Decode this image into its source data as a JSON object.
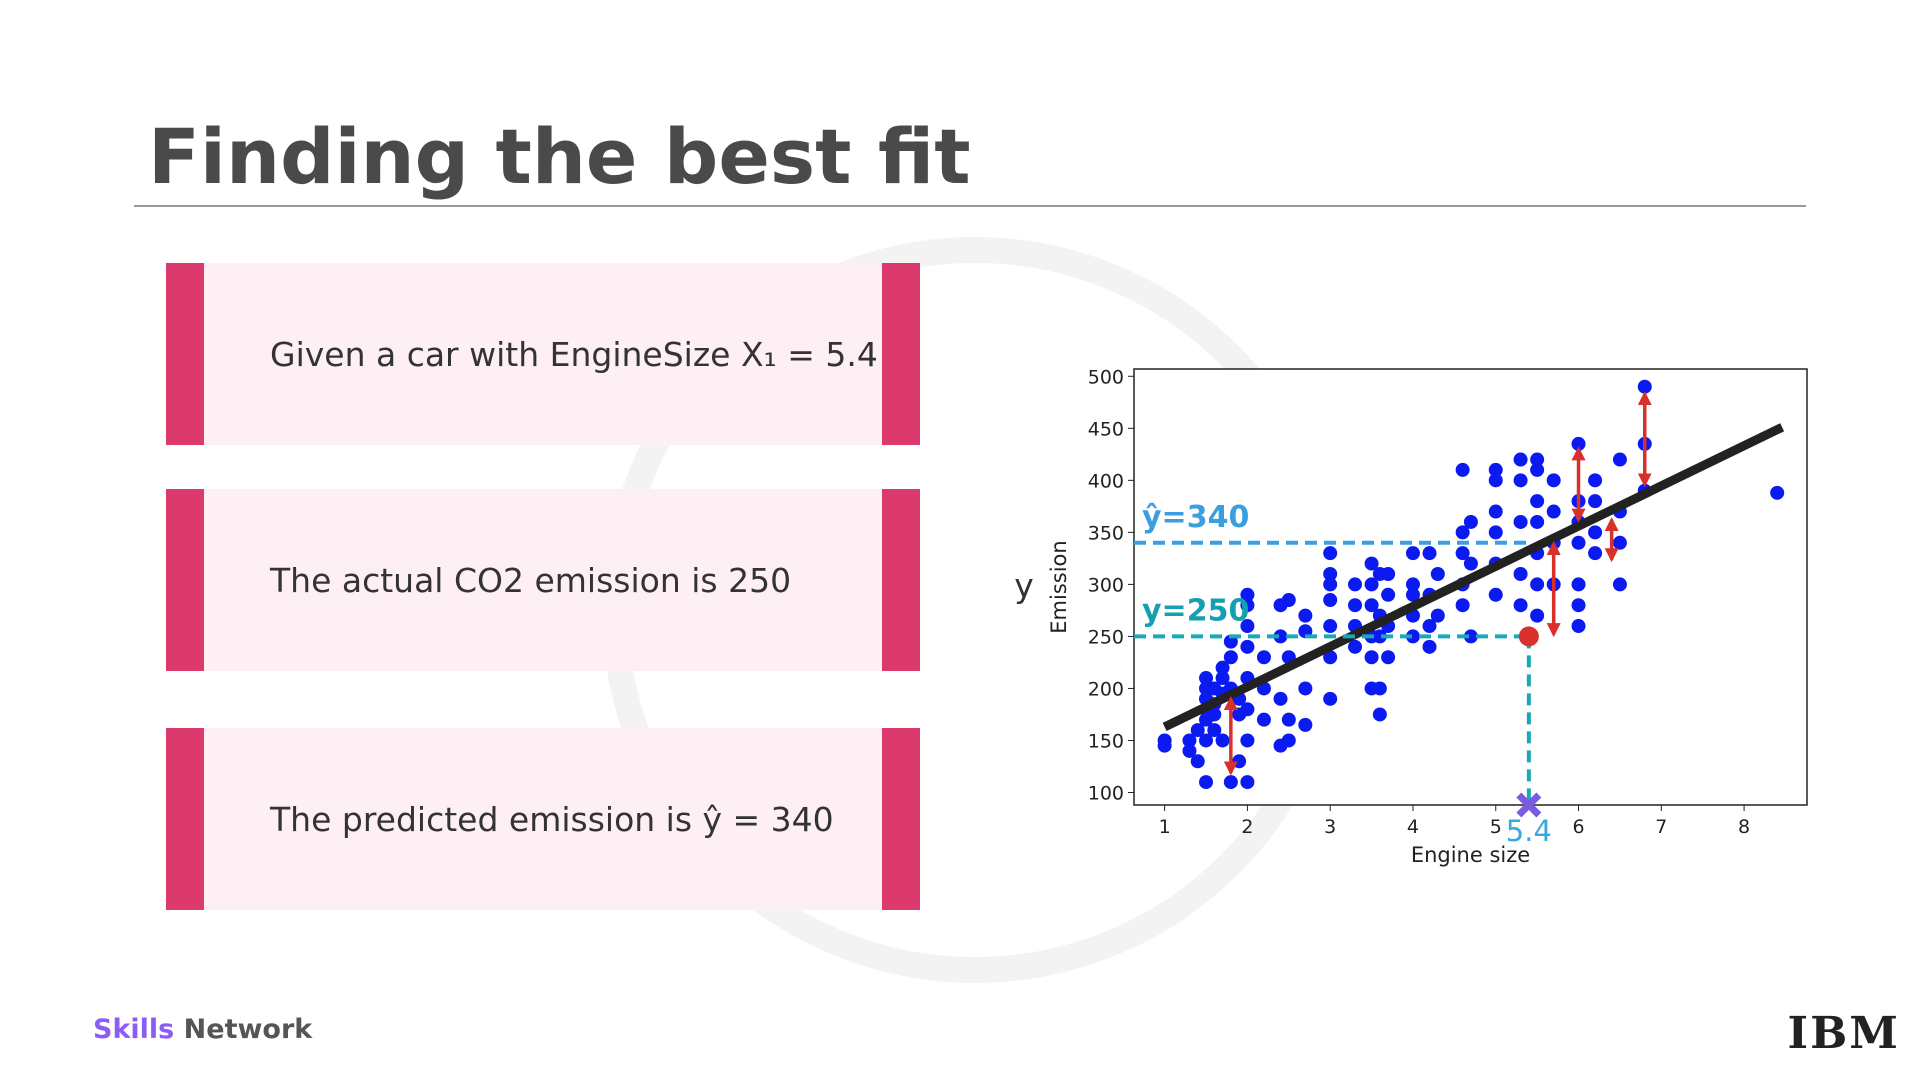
{
  "header": {
    "title": "Finding the best fit"
  },
  "boxes": [
    "Given a car with EngineSize X₁ = 5.4",
    "The actual CO2 emission is 250",
    "The predicted emission is ŷ = 340"
  ],
  "footer": {
    "brand": "Skills",
    "network": "Network",
    "company": "IBM"
  },
  "chart_data": {
    "type": "scatter",
    "x_label": "Engine size",
    "y_label": "Emission",
    "outer_label": "y",
    "xlim": [
      0.63,
      8.76
    ],
    "ylim": [
      88,
      507
    ],
    "xticks": [
      1,
      2,
      3,
      4,
      5,
      6,
      7,
      8
    ],
    "yticks": [
      100,
      150,
      200,
      250,
      300,
      350,
      400,
      450,
      500
    ],
    "series": [
      {
        "color": "#0a1af0",
        "x": [
          1,
          1,
          1.3,
          1.3,
          1.4,
          1.4,
          1.5,
          1.5,
          1.5,
          1.5,
          1.5,
          1.5,
          1.5,
          1.6,
          1.6,
          1.6,
          1.6,
          1.7,
          1.7,
          1.7,
          1.7,
          1.8,
          1.8,
          1.8,
          1.8,
          1.9,
          1.9,
          1.9,
          2,
          2,
          2,
          2,
          2,
          2,
          2,
          2,
          2.2,
          2.2,
          2.2,
          2.4,
          2.4,
          2.4,
          2.4,
          2.5,
          2.5,
          2.5,
          2.5,
          2.7,
          2.7,
          2.7,
          2.7,
          3,
          3,
          3,
          3,
          3,
          3,
          3,
          3.3,
          3.3,
          3.3,
          3.3,
          3.5,
          3.5,
          3.5,
          3.5,
          3.5,
          3.5,
          3.6,
          3.6,
          3.6,
          3.6,
          3.6,
          3.7,
          3.7,
          3.7,
          3.7,
          4,
          4,
          4,
          4,
          4,
          4.2,
          4.2,
          4.2,
          4.2,
          4.3,
          4.3,
          4.6,
          4.6,
          4.6,
          4.6,
          4.6,
          4.7,
          4.7,
          4.7,
          5,
          5,
          5,
          5,
          5,
          5,
          5.3,
          5.3,
          5.3,
          5.3,
          5.3,
          5.5,
          5.5,
          5.5,
          5.5,
          5.5,
          5.5,
          5.5,
          5.7,
          5.7,
          5.7,
          5.7,
          6,
          6,
          6,
          6,
          6,
          6,
          6,
          6.2,
          6.2,
          6.2,
          6.2,
          6.5,
          6.5,
          6.5,
          6.5,
          6.8,
          6.8,
          6.8,
          8.4
        ],
        "values": [
          150,
          145,
          150,
          140,
          130,
          160,
          110,
          180,
          200,
          170,
          150,
          190,
          210,
          185,
          200,
          175,
          160,
          195,
          210,
          220,
          150,
          110,
          200,
          230,
          245,
          130,
          175,
          190,
          110,
          150,
          180,
          210,
          240,
          260,
          280,
          290,
          170,
          200,
          230,
          145,
          190,
          250,
          280,
          170,
          150,
          230,
          285,
          200,
          165,
          255,
          270,
          190,
          230,
          260,
          300,
          330,
          285,
          310,
          240,
          260,
          300,
          280,
          200,
          230,
          250,
          280,
          300,
          320,
          175,
          200,
          250,
          270,
          310,
          230,
          260,
          290,
          310,
          250,
          270,
          290,
          300,
          330,
          240,
          260,
          290,
          330,
          310,
          270,
          280,
          300,
          350,
          330,
          410,
          250,
          320,
          360,
          290,
          320,
          350,
          370,
          400,
          410,
          280,
          310,
          360,
          400,
          420,
          270,
          300,
          330,
          360,
          380,
          410,
          420,
          300,
          340,
          370,
          400,
          260,
          280,
          300,
          340,
          360,
          380,
          435,
          330,
          350,
          380,
          400,
          300,
          340,
          370,
          420,
          390,
          435,
          490,
          388
        ]
      }
    ],
    "fit": {
      "color": "#222222",
      "x": [
        1,
        8.46
      ],
      "values": [
        163,
        451
      ]
    },
    "residuals": [
      {
        "x": 1.8,
        "y": [
          190,
          119
        ]
      },
      {
        "x": 6.0,
        "y": [
          430,
          362
        ]
      },
      {
        "x": 5.7,
        "y": [
          339,
          252
        ]
      },
      {
        "x": 6.4,
        "y": [
          362,
          324
        ]
      },
      {
        "x": 6.8,
        "y": [
          483,
          396
        ]
      }
    ],
    "highlight": {
      "x": 5.4,
      "x_label": "5.4",
      "actual": 250,
      "actual_label": "y=250",
      "predicted": 340,
      "predicted_label": "ŷ=340"
    }
  }
}
